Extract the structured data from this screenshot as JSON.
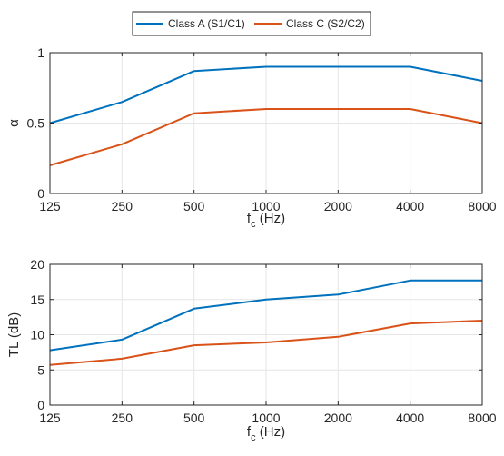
{
  "legend": {
    "entries": [
      {
        "label": "Class A (S1/C1)",
        "color": "#0072BD"
      },
      {
        "label": "Class C (S2/C2)",
        "color": "#D95319"
      }
    ],
    "placement": "top-center, horizontal, above both plots"
  },
  "chart_data": [
    {
      "type": "line",
      "categories": [
        "125",
        "250",
        "500",
        "1000",
        "2000",
        "4000",
        "8000"
      ],
      "xlabel": "f_c (Hz)",
      "xlabel_main": "f",
      "xlabel_sub": "c",
      "xlabel_unit": "(Hz)",
      "ylabel": "α",
      "ylim": [
        0,
        1
      ],
      "yticks": [
        0,
        0.5,
        1
      ],
      "ytick_labels": [
        "0",
        "0.5",
        "1"
      ],
      "grid": true,
      "series": [
        {
          "name": "Class A (S1/C1)",
          "color": "#0072BD",
          "values": [
            0.5,
            0.65,
            0.87,
            0.9,
            0.9,
            0.9,
            0.8
          ]
        },
        {
          "name": "Class C (S2/C2)",
          "color": "#D95319",
          "values": [
            0.2,
            0.35,
            0.57,
            0.6,
            0.6,
            0.6,
            0.5
          ]
        }
      ]
    },
    {
      "type": "line",
      "categories": [
        "125",
        "250",
        "500",
        "1000",
        "2000",
        "4000",
        "8000"
      ],
      "xlabel": "f_c (Hz)",
      "xlabel_main": "f",
      "xlabel_sub": "c",
      "xlabel_unit": "(Hz)",
      "ylabel": "TL (dB)",
      "ylim": [
        0,
        20
      ],
      "yticks": [
        0,
        5,
        10,
        15,
        20
      ],
      "ytick_labels": [
        "0",
        "5",
        "10",
        "15",
        "20"
      ],
      "grid": true,
      "series": [
        {
          "name": "Class A (S1/C1)",
          "color": "#0072BD",
          "values": [
            7.8,
            9.3,
            13.7,
            15.0,
            15.7,
            17.7,
            17.7
          ]
        },
        {
          "name": "Class C (S2/C2)",
          "color": "#D95319",
          "values": [
            5.7,
            6.6,
            8.5,
            8.9,
            9.7,
            11.6,
            12.0
          ]
        }
      ]
    }
  ]
}
